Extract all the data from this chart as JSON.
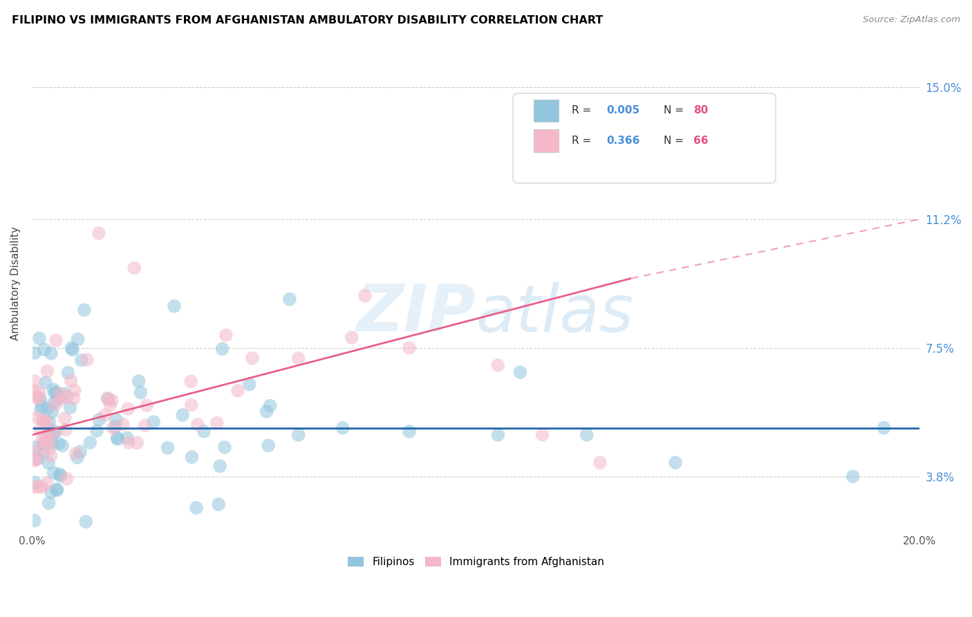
{
  "title": "FILIPINO VS IMMIGRANTS FROM AFGHANISTAN AMBULATORY DISABILITY CORRELATION CHART",
  "source": "Source: ZipAtlas.com",
  "ylabel": "Ambulatory Disability",
  "ytick_labels": [
    "3.8%",
    "7.5%",
    "11.2%",
    "15.0%"
  ],
  "ytick_values": [
    3.8,
    7.5,
    11.2,
    15.0
  ],
  "xlim": [
    0.0,
    20.0
  ],
  "ylim": [
    2.2,
    16.5
  ],
  "watermark": "ZIPatlas",
  "color_filipino": "#92c5de",
  "color_afghanistan": "#f4b8c8",
  "trendline_filipino_color": "#2166ac",
  "trendline_afghanistan_color": "#e8608a",
  "fil_flat_y": 5.2,
  "afg_x0": 0.0,
  "afg_y0": 5.0,
  "afg_x1": 13.5,
  "afg_y1": 9.5,
  "afg_solid_end": 13.5,
  "afg_dash_end": 20.0,
  "afg_y_dash_end": 11.2
}
